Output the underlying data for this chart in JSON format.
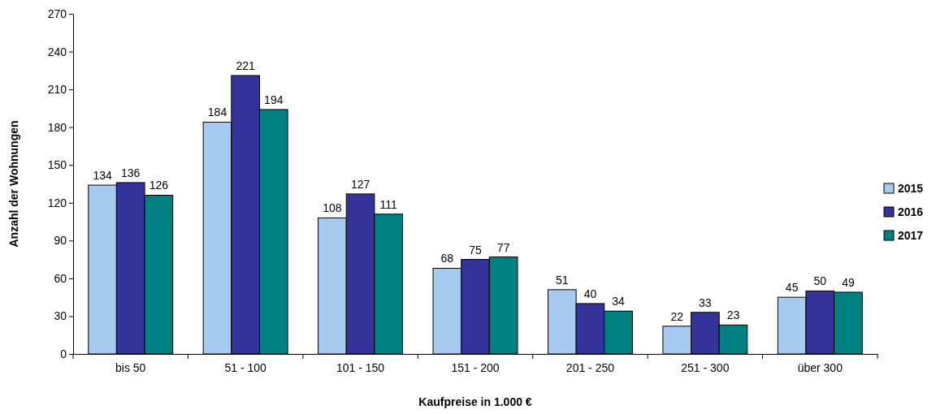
{
  "chart_data": {
    "type": "bar",
    "xlabel": "Kaufpreise in 1.000 €",
    "ylabel": "Anzahl der Wohnungen",
    "categories": [
      "bis 50",
      "51 - 100",
      "101 - 150",
      "151 - 200",
      "201 - 250",
      "251 - 300",
      "über 300"
    ],
    "series": [
      {
        "name": "2015",
        "color": "#a6caf0",
        "values": [
          134,
          184,
          108,
          68,
          51,
          22,
          45
        ]
      },
      {
        "name": "2016",
        "color": "#333399",
        "values": [
          136,
          221,
          127,
          75,
          40,
          33,
          50
        ]
      },
      {
        "name": "2017",
        "color": "#008080",
        "values": [
          126,
          194,
          111,
          77,
          34,
          23,
          49
        ]
      }
    ],
    "ylim": [
      0,
      270
    ],
    "yticks": [
      0,
      30,
      60,
      90,
      120,
      150,
      180,
      210,
      240,
      270
    ],
    "data_labels": true,
    "legend": "right",
    "grid": false
  }
}
